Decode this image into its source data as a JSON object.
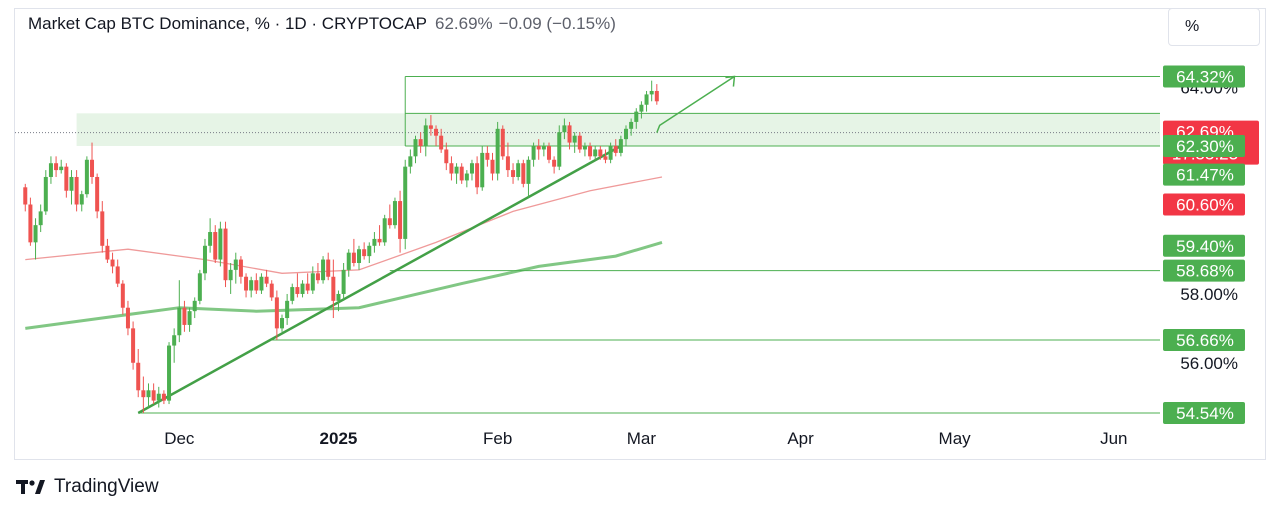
{
  "header": {
    "symbol": "Market Cap BTC Dominance, % · 1D · CRYPTOCAP",
    "value": "62.69%",
    "change": "−0.09 (−0.15%)"
  },
  "unit_label": "%",
  "footer": {
    "brand": "TradingView"
  },
  "colors": {
    "up": "#4caf50",
    "down": "#ef5350",
    "zone": "#e6f4e6",
    "ma_red": "#ef9a9a",
    "ma_green": "#81c784",
    "line_green": "#43a047"
  },
  "icons": {
    "logo": "tradingview-logo-icon"
  },
  "chart_data": {
    "type": "candlestick",
    "x_ticks": [
      {
        "label": "Dec",
        "date": "2024-12-01",
        "bold": false
      },
      {
        "label": "2025",
        "date": "2025-01-01",
        "bold": true
      },
      {
        "label": "Feb",
        "date": "2025-02-01",
        "bold": false
      },
      {
        "label": "Mar",
        "date": "2025-03-01",
        "bold": false
      },
      {
        "label": "Apr",
        "date": "2025-04-01",
        "bold": false
      },
      {
        "label": "May",
        "date": "2025-05-01",
        "bold": false
      },
      {
        "label": "Jun",
        "date": "2025-06-01",
        "bold": false
      }
    ],
    "x_range": [
      "2024-10-30",
      "2025-06-10"
    ],
    "y_ticks": [
      "64.00%",
      "58.00%",
      "56.00%"
    ],
    "y_range": [
      53.8,
      66.2
    ],
    "price_labels": [
      {
        "value": 64.32,
        "text": "64.32%",
        "color": "#4caf50"
      },
      {
        "value": 62.69,
        "text": "62.69%",
        "sub": "17:55:23",
        "color": "#f23645"
      },
      {
        "value": 62.3,
        "text": "62.30%",
        "color": "#4caf50"
      },
      {
        "value": 61.47,
        "text": "61.47%",
        "color": "#4caf50"
      },
      {
        "value": 60.6,
        "text": "60.60%",
        "color": "#f23645"
      },
      {
        "value": 59.4,
        "text": "59.40%",
        "color": "#4caf50"
      },
      {
        "value": 58.68,
        "text": "58.68%",
        "color": "#4caf50"
      },
      {
        "value": 56.66,
        "text": "56.66%",
        "color": "#4caf50"
      },
      {
        "value": 54.54,
        "text": "54.54%",
        "color": "#4caf50"
      }
    ],
    "candles": [
      [
        61.1,
        61.2,
        60.4,
        60.6
      ],
      [
        60.6,
        60.8,
        59.4,
        59.5
      ],
      [
        59.5,
        60.2,
        59.0,
        60.0
      ],
      [
        60.0,
        60.6,
        59.8,
        60.4
      ],
      [
        60.4,
        61.6,
        60.3,
        61.4
      ],
      [
        61.4,
        62.0,
        61.2,
        61.8
      ],
      [
        61.8,
        62.0,
        61.4,
        61.6
      ],
      [
        61.6,
        61.9,
        61.5,
        61.7
      ],
      [
        61.7,
        61.8,
        60.8,
        61.0
      ],
      [
        61.0,
        61.6,
        60.6,
        61.4
      ],
      [
        61.4,
        61.6,
        60.4,
        60.6
      ],
      [
        60.6,
        61.0,
        60.4,
        60.9
      ],
      [
        60.9,
        62.0,
        60.8,
        61.9
      ],
      [
        61.9,
        62.4,
        61.2,
        61.4
      ],
      [
        61.4,
        61.5,
        60.2,
        60.4
      ],
      [
        60.4,
        60.7,
        59.2,
        59.4
      ],
      [
        59.4,
        59.6,
        58.9,
        59.0
      ],
      [
        59.0,
        59.2,
        58.6,
        58.8
      ],
      [
        58.8,
        59.0,
        58.2,
        58.3
      ],
      [
        58.3,
        58.4,
        57.4,
        57.6
      ],
      [
        57.6,
        57.8,
        56.8,
        57.0
      ],
      [
        57.0,
        57.2,
        55.8,
        56.0
      ],
      [
        56.0,
        56.4,
        55.0,
        55.2
      ],
      [
        55.2,
        55.6,
        54.54,
        55.0
      ],
      [
        55.0,
        55.4,
        54.7,
        55.2
      ],
      [
        55.2,
        55.4,
        54.8,
        54.9
      ],
      [
        54.9,
        55.3,
        54.7,
        55.1
      ],
      [
        55.1,
        55.2,
        54.8,
        54.9
      ],
      [
        54.9,
        56.6,
        54.8,
        56.5
      ],
      [
        56.5,
        57.0,
        56.0,
        56.8
      ],
      [
        56.8,
        58.4,
        56.6,
        57.6
      ],
      [
        57.6,
        57.8,
        56.9,
        57.1
      ],
      [
        57.1,
        57.6,
        56.9,
        57.5
      ],
      [
        57.5,
        57.9,
        57.3,
        57.8
      ],
      [
        57.8,
        58.7,
        57.7,
        58.6
      ],
      [
        58.6,
        59.6,
        58.4,
        59.4
      ],
      [
        59.4,
        60.2,
        59.2,
        59.8
      ],
      [
        59.8,
        60.0,
        58.9,
        59.0
      ],
      [
        59.0,
        60.1,
        58.8,
        59.9
      ],
      [
        59.9,
        60.1,
        58.2,
        58.4
      ],
      [
        58.4,
        58.9,
        58.0,
        58.7
      ],
      [
        58.7,
        59.2,
        58.3,
        59.0
      ],
      [
        59.0,
        59.1,
        58.3,
        58.5
      ],
      [
        58.5,
        58.6,
        57.9,
        58.1
      ],
      [
        58.1,
        58.5,
        57.9,
        58.4
      ],
      [
        58.4,
        58.6,
        58.0,
        58.1
      ],
      [
        58.1,
        58.6,
        58.0,
        58.5
      ],
      [
        58.5,
        58.7,
        58.2,
        58.3
      ],
      [
        58.3,
        58.4,
        57.8,
        57.9
      ],
      [
        57.9,
        58.1,
        56.66,
        57.0
      ],
      [
        57.0,
        57.4,
        56.9,
        57.3
      ],
      [
        57.3,
        58.0,
        57.1,
        57.8
      ],
      [
        57.8,
        58.3,
        57.7,
        58.2
      ],
      [
        58.2,
        58.6,
        57.9,
        58.0
      ],
      [
        58.0,
        58.4,
        57.9,
        58.3
      ],
      [
        58.3,
        58.6,
        58.0,
        58.1
      ],
      [
        58.1,
        58.8,
        58.0,
        58.6
      ],
      [
        58.6,
        58.9,
        58.3,
        58.4
      ],
      [
        58.4,
        59.1,
        58.3,
        59.0
      ],
      [
        59.0,
        59.2,
        58.4,
        58.5
      ],
      [
        58.5,
        59.0,
        57.3,
        57.8
      ],
      [
        57.8,
        58.1,
        57.5,
        58.0
      ],
      [
        58.0,
        58.9,
        57.8,
        58.7
      ],
      [
        58.7,
        59.3,
        58.5,
        59.2
      ],
      [
        59.2,
        59.6,
        58.8,
        58.9
      ],
      [
        58.9,
        59.4,
        58.7,
        59.3
      ],
      [
        59.3,
        59.5,
        59.0,
        59.1
      ],
      [
        59.1,
        59.5,
        58.9,
        59.4
      ],
      [
        59.4,
        59.8,
        59.2,
        59.6
      ],
      [
        59.6,
        60.0,
        59.4,
        59.5
      ],
      [
        59.5,
        60.3,
        59.4,
        60.2
      ],
      [
        60.2,
        60.6,
        59.9,
        60.0
      ],
      [
        60.0,
        60.8,
        59.9,
        60.7
      ],
      [
        60.7,
        61.0,
        59.2,
        59.6
      ],
      [
        59.6,
        61.9,
        59.3,
        61.7
      ],
      [
        61.7,
        62.2,
        61.5,
        62.0
      ],
      [
        62.0,
        62.6,
        61.8,
        62.5
      ],
      [
        62.5,
        62.7,
        62.1,
        62.3
      ],
      [
        62.3,
        63.1,
        62.0,
        62.9
      ],
      [
        62.9,
        63.2,
        62.6,
        62.8
      ],
      [
        62.8,
        62.9,
        62.3,
        62.6
      ],
      [
        62.6,
        62.8,
        62.1,
        62.2
      ],
      [
        62.2,
        62.4,
        61.6,
        61.8
      ],
      [
        61.8,
        62.0,
        61.3,
        61.5
      ],
      [
        61.5,
        61.8,
        61.2,
        61.7
      ],
      [
        61.7,
        61.8,
        61.2,
        61.3
      ],
      [
        61.3,
        61.6,
        61.1,
        61.5
      ],
      [
        61.5,
        61.9,
        61.3,
        61.8
      ],
      [
        61.8,
        62.0,
        60.9,
        61.1
      ],
      [
        61.1,
        62.3,
        61.0,
        62.1
      ],
      [
        62.1,
        62.3,
        61.7,
        61.9
      ],
      [
        61.9,
        62.1,
        61.3,
        61.5
      ],
      [
        61.5,
        63.0,
        61.3,
        62.8
      ],
      [
        62.8,
        62.9,
        61.9,
        62.0
      ],
      [
        62.0,
        62.4,
        61.4,
        61.6
      ],
      [
        61.6,
        61.8,
        61.2,
        61.4
      ],
      [
        61.4,
        61.9,
        61.3,
        61.8
      ],
      [
        61.8,
        61.9,
        61.1,
        61.2
      ],
      [
        61.2,
        62.0,
        60.8,
        61.9
      ],
      [
        61.9,
        62.4,
        61.7,
        62.3
      ],
      [
        62.3,
        62.5,
        61.9,
        62.2
      ],
      [
        62.2,
        62.4,
        62.0,
        62.3
      ],
      [
        62.3,
        62.4,
        61.8,
        61.9
      ],
      [
        61.9,
        62.0,
        61.5,
        61.7
      ],
      [
        61.7,
        62.9,
        61.6,
        62.7
      ],
      [
        62.7,
        63.1,
        62.5,
        62.9
      ],
      [
        62.9,
        63.0,
        62.2,
        62.4
      ],
      [
        62.4,
        62.7,
        62.1,
        62.6
      ],
      [
        62.6,
        62.7,
        62.1,
        62.2
      ],
      [
        62.2,
        62.4,
        62.0,
        62.3
      ],
      [
        62.3,
        62.4,
        61.9,
        62.0
      ],
      [
        62.0,
        62.3,
        61.9,
        62.2
      ],
      [
        62.2,
        62.3,
        61.9,
        62.0
      ],
      [
        62.0,
        62.2,
        61.8,
        61.9
      ],
      [
        61.9,
        62.4,
        61.8,
        62.3
      ],
      [
        62.3,
        62.5,
        62.0,
        62.1
      ],
      [
        62.1,
        62.6,
        62.0,
        62.5
      ],
      [
        62.5,
        62.9,
        62.3,
        62.8
      ],
      [
        62.8,
        63.1,
        62.6,
        63.0
      ],
      [
        63.0,
        63.4,
        62.8,
        63.3
      ],
      [
        63.3,
        63.6,
        63.1,
        63.5
      ],
      [
        63.5,
        63.9,
        63.3,
        63.8
      ],
      [
        63.8,
        64.2,
        63.6,
        63.9
      ],
      [
        63.9,
        64.1,
        63.5,
        63.6
      ]
    ],
    "candle_x_start": "2024-11-01",
    "ma_red": [
      [
        0,
        59.0
      ],
      [
        20,
        59.3
      ],
      [
        35,
        59.0
      ],
      [
        50,
        58.6
      ],
      [
        65,
        58.7
      ],
      [
        80,
        59.5
      ],
      [
        95,
        60.4
      ],
      [
        110,
        61.0
      ],
      [
        124,
        61.4
      ]
    ],
    "ma_green": [
      [
        0,
        57.0
      ],
      [
        15,
        57.3
      ],
      [
        30,
        57.6
      ],
      [
        45,
        57.5
      ],
      [
        65,
        57.6
      ],
      [
        85,
        58.3
      ],
      [
        100,
        58.8
      ],
      [
        115,
        59.1
      ],
      [
        124,
        59.5
      ]
    ],
    "zone": {
      "from_index": 10,
      "to_index": 150,
      "low": 62.3,
      "high": 63.25
    },
    "trendline": [
      [
        22,
        54.54
      ],
      [
        116,
        62.3
      ]
    ],
    "levels": [
      {
        "value": 64.32,
        "from_index": 74
      },
      {
        "value": 63.25,
        "from_index": 74
      },
      {
        "value": 62.3,
        "from_index": 74
      },
      {
        "value": 58.68,
        "from_index": 71
      },
      {
        "value": 56.66,
        "from_index": 48
      },
      {
        "value": 54.54,
        "from_index": 22
      }
    ],
    "projection": [
      [
        122,
        63.5
      ],
      [
        135,
        64.32
      ]
    ],
    "current_price": 62.69
  }
}
